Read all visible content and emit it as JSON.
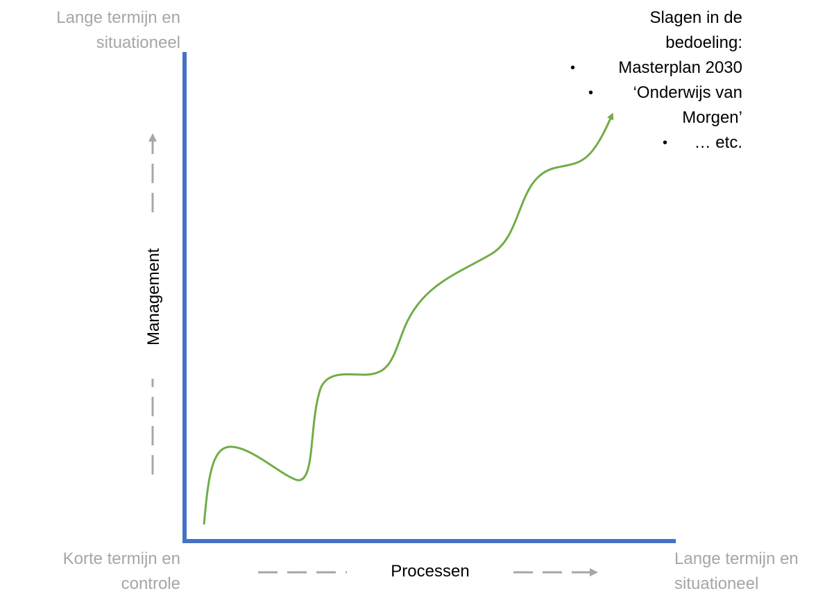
{
  "corner_top_left": [
    "Lange termijn en",
    "situationeel"
  ],
  "corner_bottom_left": [
    "Korte termijn en",
    "controle"
  ],
  "corner_bottom_right": [
    "Lange termijn en",
    "situationeel"
  ],
  "x_axis_label": "Processen",
  "y_axis_label": "Management",
  "goal": {
    "title_lines": [
      "Slagen in de",
      "bedoeling:"
    ],
    "items": [
      {
        "bullet": "•",
        "lines": [
          "Masterplan 2030"
        ]
      },
      {
        "bullet": "•",
        "lines": [
          "‘Onderwijs van",
          "Morgen’"
        ]
      },
      {
        "bullet": "•",
        "lines": [
          "… etc."
        ]
      }
    ]
  },
  "colors": {
    "axis": "#4472c4",
    "curve": "#70ad47",
    "muted_text": "#a6a6a6",
    "arrow": "#a6a6a6"
  }
}
